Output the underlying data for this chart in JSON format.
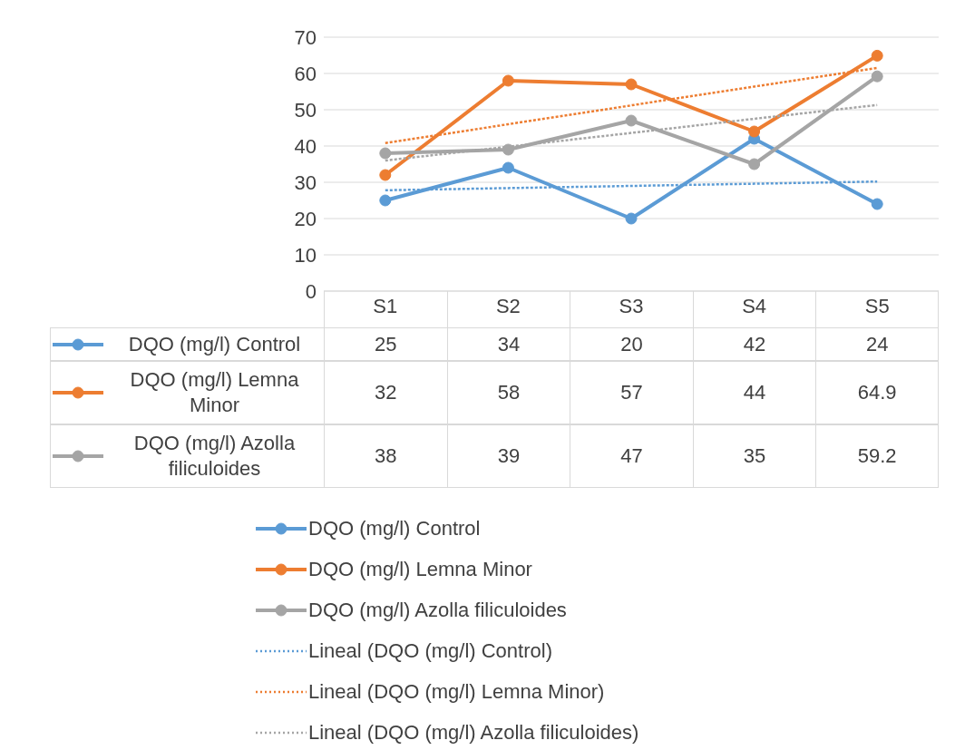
{
  "chart_data": {
    "type": "line",
    "categories": [
      "S1",
      "S2",
      "S3",
      "S4",
      "S5"
    ],
    "series": [
      {
        "name": "DQO (mg/l) Control",
        "color": "#5b9bd5",
        "values": [
          25,
          34,
          20,
          42,
          24
        ],
        "value_labels": [
          "25",
          "34",
          "20",
          "42",
          "24"
        ],
        "marker": "circle",
        "line_style": "solid"
      },
      {
        "name": "DQO (mg/l) Lemna Minor",
        "color": "#ed7d31",
        "values": [
          32,
          58,
          57,
          44,
          64.9
        ],
        "value_labels": [
          "32",
          "58",
          "57",
          "44",
          "64.9"
        ],
        "marker": "circle",
        "line_style": "solid"
      },
      {
        "name": "DQO (mg/l) Azolla filiculoides",
        "color": "#a5a5a5",
        "values": [
          38,
          39,
          47,
          35,
          59.2
        ],
        "value_labels": [
          "38",
          "39",
          "47",
          "35",
          "59.2"
        ],
        "marker": "circle",
        "line_style": "solid"
      },
      {
        "name": "Lineal (DQO (mg/l) Control)",
        "color": "#5b9bd5",
        "values": [
          27.8,
          28.4,
          29,
          29.6,
          30.2
        ],
        "marker": "none",
        "line_style": "dotted"
      },
      {
        "name": "Lineal (DQO (mg/l) Lemna Minor)",
        "color": "#ed7d31",
        "values": [
          40.8,
          46,
          51.2,
          56.4,
          61.5
        ],
        "marker": "none",
        "line_style": "dotted"
      },
      {
        "name": "Lineal (DQO (mg/l) Azolla filiculoides)",
        "color": "#a5a5a5",
        "values": [
          36,
          39.8,
          43.6,
          47.5,
          51.3
        ],
        "marker": "none",
        "line_style": "dotted"
      }
    ],
    "ylim": [
      0,
      70
    ],
    "yticks": [
      0,
      10,
      20,
      30,
      40,
      50,
      60,
      70
    ],
    "grid": "y",
    "legend": "bottom"
  }
}
